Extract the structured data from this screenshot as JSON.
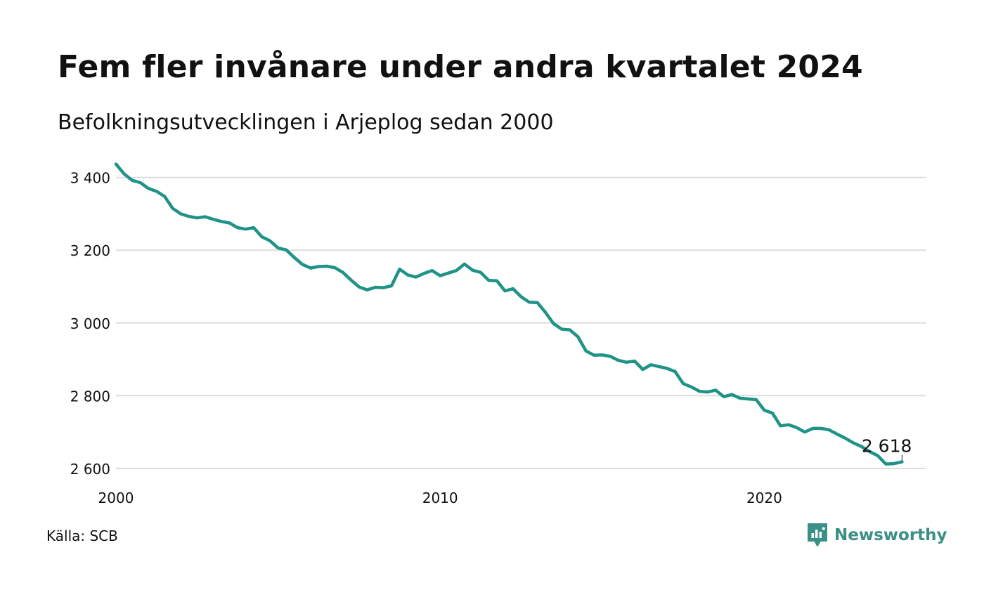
{
  "title": "Fem fler invånare under andra kvartalet 2024",
  "subtitle": "Befolkningsutvecklingen i Arjeplog sedan 2000",
  "source": "Källa: SCB",
  "brand": {
    "name": "Newsworthy",
    "icon": "newsworthy-logo-icon",
    "color": "#3b8f87"
  },
  "chart_data": {
    "type": "line",
    "title": "Fem fler invånare under andra kvartalet 2024",
    "subtitle": "Befolkningsutvecklingen i Arjeplog sedan 2000",
    "xlabel": "",
    "ylabel": "",
    "x_ticks": [
      2000,
      2010,
      2020
    ],
    "x_tick_labels": [
      "2000",
      "2010",
      "2020"
    ],
    "y_ticks": [
      2600,
      2800,
      3000,
      3200,
      3400
    ],
    "y_tick_labels": [
      "2 600",
      "2 800",
      "3 000",
      "3 200",
      "3 400"
    ],
    "xlim": [
      2000,
      2025
    ],
    "ylim": [
      2590,
      3440
    ],
    "grid": "horizontal",
    "line_color": "#1f9387",
    "end_label": "2 618",
    "series": [
      {
        "x": [
          2000.0,
          2000.25,
          2000.5,
          2000.75,
          2001.0,
          2001.25,
          2001.5,
          2001.75,
          2002.0,
          2002.25,
          2002.5,
          2002.75,
          2003.0,
          2003.25,
          2003.5,
          2003.75,
          2004.0,
          2004.25,
          2004.5,
          2004.75,
          2005.0,
          2005.25,
          2005.5,
          2005.75,
          2006.0,
          2006.25,
          2006.5,
          2006.75,
          2007.0,
          2007.25,
          2007.5,
          2007.75,
          2008.0,
          2008.25,
          2008.5,
          2008.75,
          2009.0,
          2009.25,
          2009.5,
          2009.75,
          2010.0,
          2010.25,
          2010.5,
          2010.75,
          2011.0,
          2011.25,
          2011.5,
          2011.75,
          2012.0,
          2012.25,
          2012.5,
          2012.75,
          2013.0,
          2013.25,
          2013.5,
          2013.75,
          2014.0,
          2014.25,
          2014.5,
          2014.75,
          2015.0,
          2015.25,
          2015.5,
          2015.75,
          2016.0,
          2016.25,
          2016.5,
          2016.75,
          2017.0,
          2017.25,
          2017.5,
          2017.75,
          2018.0,
          2018.25,
          2018.5,
          2018.75,
          2019.0,
          2019.25,
          2019.5,
          2019.75,
          2020.0,
          2020.25,
          2020.5,
          2020.75,
          2021.0,
          2021.25,
          2021.5,
          2021.75,
          2022.0,
          2022.25,
          2022.5,
          2022.75,
          2023.0,
          2023.25,
          2023.5,
          2023.75,
          2024.0,
          2024.25
        ],
        "values": [
          3437,
          3410,
          3392,
          3386,
          3370,
          3362,
          3348,
          3315,
          3300,
          3293,
          3289,
          3292,
          3285,
          3279,
          3275,
          3262,
          3258,
          3262,
          3237,
          3226,
          3206,
          3201,
          3180,
          3161,
          3151,
          3155,
          3156,
          3152,
          3139,
          3118,
          3099,
          3091,
          3098,
          3097,
          3102,
          3148,
          3132,
          3126,
          3136,
          3144,
          3130,
          3137,
          3144,
          3162,
          3145,
          3139,
          3117,
          3116,
          3088,
          3094,
          3072,
          3057,
          3056,
          3029,
          2998,
          2983,
          2981,
          2962,
          2923,
          2911,
          2912,
          2908,
          2897,
          2892,
          2895,
          2872,
          2885,
          2880,
          2875,
          2866,
          2833,
          2824,
          2812,
          2810,
          2815,
          2797,
          2803,
          2793,
          2791,
          2789,
          2760,
          2752,
          2717,
          2720,
          2712,
          2700,
          2710,
          2710,
          2706,
          2694,
          2683,
          2670,
          2660,
          2646,
          2635,
          2612,
          2613,
          2618
        ]
      }
    ]
  }
}
